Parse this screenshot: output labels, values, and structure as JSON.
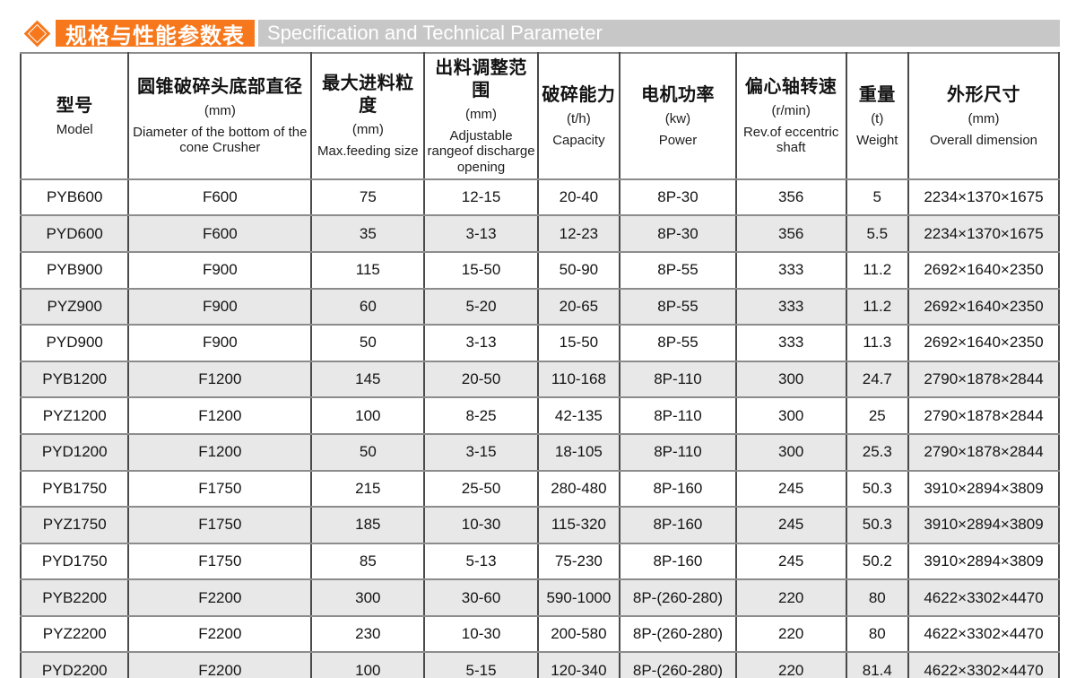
{
  "header": {
    "title_zh": "规格与性能参数表",
    "title_en": "Specification and Technical Parameter",
    "accent_color": "#f7781c",
    "bar_color": "#c7c7c7"
  },
  "table": {
    "stripe_color": "#e8e8e8",
    "columns": [
      {
        "zh": "型号",
        "unit": "",
        "en": "Model"
      },
      {
        "zh": "圆锥破碎头底部直径",
        "unit": "(mm)",
        "en": "Diameter of the bottom of the cone Crusher"
      },
      {
        "zh": "最大进料粒度",
        "unit": "(mm)",
        "en": "Max.feeding size"
      },
      {
        "zh": "出料调整范围",
        "unit": "(mm)",
        "en": "Adjustable rangeof discharge opening"
      },
      {
        "zh": "破碎能力",
        "unit": "(t/h)",
        "en": "Capacity"
      },
      {
        "zh": "电机功率",
        "unit": "(kw)",
        "en": "Power"
      },
      {
        "zh": "偏心轴转速",
        "unit": "(r/min)",
        "en": "Rev.of eccentric shaft"
      },
      {
        "zh": "重量",
        "unit": "(t)",
        "en": "Weight"
      },
      {
        "zh": "外形尺寸",
        "unit": "(mm)",
        "en": "Overall dimension"
      }
    ],
    "rows": [
      [
        "PYB600",
        "F600",
        "75",
        "12-15",
        "20-40",
        "8P-30",
        "356",
        "5",
        "2234×1370×1675"
      ],
      [
        "PYD600",
        "F600",
        "35",
        "3-13",
        "12-23",
        "8P-30",
        "356",
        "5.5",
        "2234×1370×1675"
      ],
      [
        "PYB900",
        "F900",
        "115",
        "15-50",
        "50-90",
        "8P-55",
        "333",
        "11.2",
        "2692×1640×2350"
      ],
      [
        "PYZ900",
        "F900",
        "60",
        "5-20",
        "20-65",
        "8P-55",
        "333",
        "11.2",
        "2692×1640×2350"
      ],
      [
        "PYD900",
        "F900",
        "50",
        "3-13",
        "15-50",
        "8P-55",
        "333",
        "11.3",
        "2692×1640×2350"
      ],
      [
        "PYB1200",
        "F1200",
        "145",
        "20-50",
        "110-168",
        "8P-110",
        "300",
        "24.7",
        "2790×1878×2844"
      ],
      [
        "PYZ1200",
        "F1200",
        "100",
        "8-25",
        "42-135",
        "8P-110",
        "300",
        "25",
        "2790×1878×2844"
      ],
      [
        "PYD1200",
        "F1200",
        "50",
        "3-15",
        "18-105",
        "8P-110",
        "300",
        "25.3",
        "2790×1878×2844"
      ],
      [
        "PYB1750",
        "F1750",
        "215",
        "25-50",
        "280-480",
        "8P-160",
        "245",
        "50.3",
        "3910×2894×3809"
      ],
      [
        "PYZ1750",
        "F1750",
        "185",
        "10-30",
        "115-320",
        "8P-160",
        "245",
        "50.3",
        "3910×2894×3809"
      ],
      [
        "PYD1750",
        "F1750",
        "85",
        "5-13",
        "75-230",
        "8P-160",
        "245",
        "50.2",
        "3910×2894×3809"
      ],
      [
        "PYB2200",
        "F2200",
        "300",
        "30-60",
        "590-1000",
        "8P-(260-280)",
        "220",
        "80",
        "4622×3302×4470"
      ],
      [
        "PYZ2200",
        "F2200",
        "230",
        "10-30",
        "200-580",
        "8P-(260-280)",
        "220",
        "80",
        "4622×3302×4470"
      ],
      [
        "PYD2200",
        "F2200",
        "100",
        "5-15",
        "120-340",
        "8P-(260-280)",
        "220",
        "81.4",
        "4622×3302×4470"
      ]
    ]
  }
}
